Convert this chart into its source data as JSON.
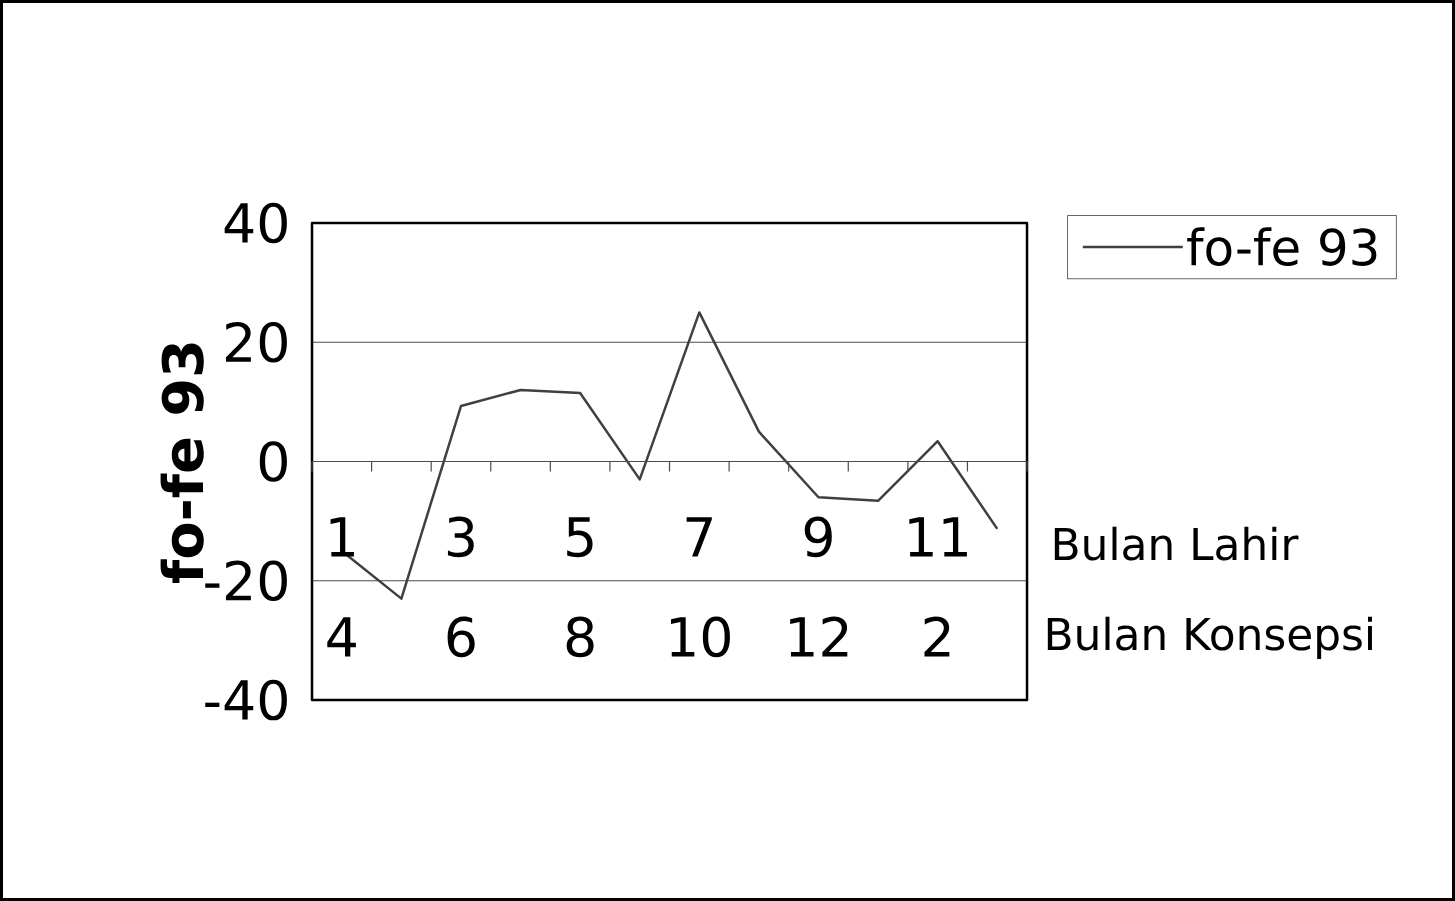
{
  "chart_data": {
    "type": "line",
    "categories": [
      "1",
      null,
      "3",
      null,
      "5",
      null,
      "7",
      null,
      "9",
      null,
      "11",
      null
    ],
    "series": [
      {
        "name": "fo-fe 93",
        "color": "#404040",
        "values": [
          -15,
          -23,
          9.3,
          12,
          11.5,
          -3,
          25,
          5,
          -6,
          -6.6,
          3.4,
          -11.3
        ]
      }
    ],
    "ylabel": "fo-fe 93",
    "xlabel": "Bulan Lahir",
    "annotations": [
      "Bulan Konsepsi",
      "4",
      "6",
      "8",
      "10",
      "12",
      "2"
    ],
    "ylim": [
      -40,
      40
    ],
    "yticks": [
      -40,
      -20,
      0,
      20,
      40
    ],
    "grid": "y",
    "legend": "top right"
  }
}
